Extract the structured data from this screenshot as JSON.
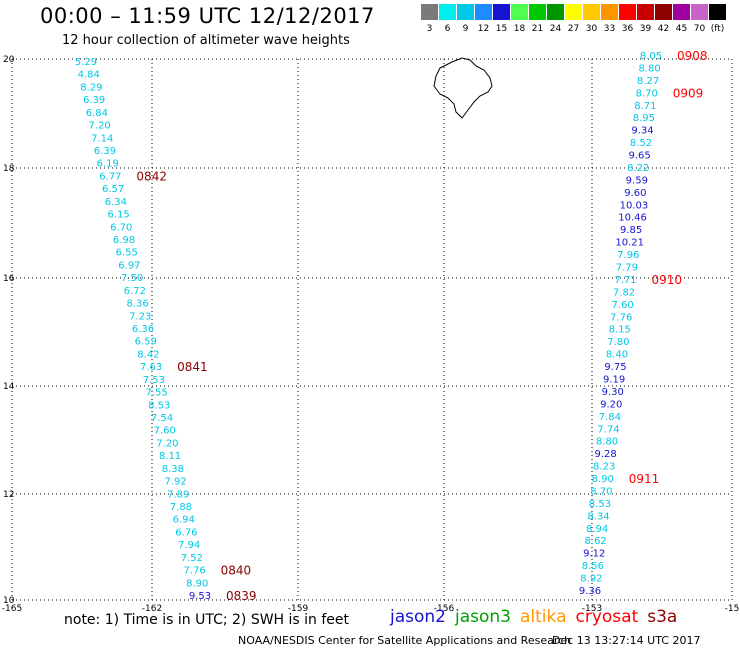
{
  "header": {
    "title": "00:00 – 11:59 UTC 12/12/2017",
    "subtitle": "12 hour collection of altimeter wave heights"
  },
  "color_scale": {
    "labels": [
      "3",
      "6",
      "9",
      "12",
      "15",
      "18",
      "21",
      "24",
      "27",
      "30",
      "33",
      "36",
      "39",
      "42",
      "45",
      "70",
      "(ft)"
    ],
    "colors": [
      "#7a7a7a",
      "#00f0f0",
      "#00c8e6",
      "#1e8cff",
      "#1414d2",
      "#50ff50",
      "#00c800",
      "#009600",
      "#ffff00",
      "#ffc800",
      "#ff9600",
      "#ff0000",
      "#c80000",
      "#8c0000",
      "#a000a0",
      "#c864c8",
      "#000000"
    ]
  },
  "axes": {
    "lon_labels": [
      "-165",
      "-162",
      "-159",
      "-156",
      "-153",
      "-15"
    ],
    "lat_labels": [
      "20",
      "18",
      "16",
      "14",
      "12",
      "10"
    ]
  },
  "tracks": [
    {
      "name": "west",
      "values": [
        {
          "v": "5.29",
          "c": "#00c8e6"
        },
        {
          "v": "4.84",
          "c": "#00c8e6"
        },
        {
          "v": "8.29",
          "c": "#00c8e6"
        },
        {
          "v": "6.39",
          "c": "#00c8e6"
        },
        {
          "v": "6.84",
          "c": "#00c8e6"
        },
        {
          "v": "7.20",
          "c": "#00c8e6"
        },
        {
          "v": "7.14",
          "c": "#00c8e6"
        },
        {
          "v": "6.39",
          "c": "#00c8e6"
        },
        {
          "v": "6.19",
          "c": "#00c8e6"
        },
        {
          "v": "6.77",
          "c": "#00c8e6"
        },
        {
          "v": "6.57",
          "c": "#00c8e6"
        },
        {
          "v": "6.34",
          "c": "#00c8e6"
        },
        {
          "v": "6.15",
          "c": "#00c8e6"
        },
        {
          "v": "6.70",
          "c": "#00c8e6"
        },
        {
          "v": "6.98",
          "c": "#00c8e6"
        },
        {
          "v": "6.55",
          "c": "#00c8e6"
        },
        {
          "v": "6.97",
          "c": "#00c8e6"
        },
        {
          "v": "7.50",
          "c": "#00c8e6"
        },
        {
          "v": "6.72",
          "c": "#00c8e6"
        },
        {
          "v": "8.36",
          "c": "#00c8e6"
        },
        {
          "v": "7.23",
          "c": "#00c8e6"
        },
        {
          "v": "6.36",
          "c": "#00c8e6"
        },
        {
          "v": "6.59",
          "c": "#00c8e6"
        },
        {
          "v": "8.42",
          "c": "#00c8e6"
        },
        {
          "v": "7.63",
          "c": "#00c8e6"
        },
        {
          "v": "7.53",
          "c": "#00c8e6"
        },
        {
          "v": "7.55",
          "c": "#00c8e6"
        },
        {
          "v": "8.53",
          "c": "#00c8e6"
        },
        {
          "v": "7.54",
          "c": "#00c8e6"
        },
        {
          "v": "7.60",
          "c": "#00c8e6"
        },
        {
          "v": "7.20",
          "c": "#00c8e6"
        },
        {
          "v": "8.11",
          "c": "#00c8e6"
        },
        {
          "v": "8.38",
          "c": "#00c8e6"
        },
        {
          "v": "7.92",
          "c": "#00c8e6"
        },
        {
          "v": "7.89",
          "c": "#00c8e6"
        },
        {
          "v": "7.88",
          "c": "#00c8e6"
        },
        {
          "v": "6.94",
          "c": "#00c8e6"
        },
        {
          "v": "6.76",
          "c": "#00c8e6"
        },
        {
          "v": "7.94",
          "c": "#00c8e6"
        },
        {
          "v": "7.52",
          "c": "#00c8e6"
        },
        {
          "v": "7.76",
          "c": "#00c8e6"
        },
        {
          "v": "8.90",
          "c": "#00c8e6"
        },
        {
          "v": "9.53",
          "c": "#1414d2"
        }
      ],
      "times": [
        {
          "t": "0842",
          "row": 9
        },
        {
          "t": "0841",
          "row": 24
        },
        {
          "t": "0840",
          "row": 40
        },
        {
          "t": "0839",
          "row": 42
        }
      ],
      "time_color": "#8c0000"
    },
    {
      "name": "east",
      "values": [
        {
          "v": "8.05",
          "c": "#00c8e6"
        },
        {
          "v": "8.80",
          "c": "#00c8e6"
        },
        {
          "v": "8.27",
          "c": "#00c8e6"
        },
        {
          "v": "8.70",
          "c": "#00c8e6"
        },
        {
          "v": "8.71",
          "c": "#00c8e6"
        },
        {
          "v": "8.95",
          "c": "#00c8e6"
        },
        {
          "v": "9.34",
          "c": "#1414d2"
        },
        {
          "v": "8.52",
          "c": "#00c8e6"
        },
        {
          "v": "9.65",
          "c": "#1414d2"
        },
        {
          "v": "8.22",
          "c": "#00c8e6"
        },
        {
          "v": "9.59",
          "c": "#1414d2"
        },
        {
          "v": "9.60",
          "c": "#1414d2"
        },
        {
          "v": "10.03",
          "c": "#1414d2"
        },
        {
          "v": "10.46",
          "c": "#1414d2"
        },
        {
          "v": "9.85",
          "c": "#1414d2"
        },
        {
          "v": "10.21",
          "c": "#1414d2"
        },
        {
          "v": "7.96",
          "c": "#00c8e6"
        },
        {
          "v": "7.79",
          "c": "#00c8e6"
        },
        {
          "v": "7.71",
          "c": "#00c8e6"
        },
        {
          "v": "7.82",
          "c": "#00c8e6"
        },
        {
          "v": "7.60",
          "c": "#00c8e6"
        },
        {
          "v": "7.76",
          "c": "#00c8e6"
        },
        {
          "v": "8.15",
          "c": "#00c8e6"
        },
        {
          "v": "7.80",
          "c": "#00c8e6"
        },
        {
          "v": "8.40",
          "c": "#00c8e6"
        },
        {
          "v": "9.75",
          "c": "#1414d2"
        },
        {
          "v": "9.19",
          "c": "#1414d2"
        },
        {
          "v": "9.30",
          "c": "#1414d2"
        },
        {
          "v": "9.20",
          "c": "#1414d2"
        },
        {
          "v": "7.84",
          "c": "#00c8e6"
        },
        {
          "v": "7.74",
          "c": "#00c8e6"
        },
        {
          "v": "8.80",
          "c": "#00c8e6"
        },
        {
          "v": "9.28",
          "c": "#1414d2"
        },
        {
          "v": "8.23",
          "c": "#00c8e6"
        },
        {
          "v": "8.90",
          "c": "#00c8e6"
        },
        {
          "v": "8.70",
          "c": "#00c8e6"
        },
        {
          "v": "8.53",
          "c": "#00c8e6"
        },
        {
          "v": "8.34",
          "c": "#00c8e6"
        },
        {
          "v": "8.94",
          "c": "#00c8e6"
        },
        {
          "v": "8.62",
          "c": "#00c8e6"
        },
        {
          "v": "9.12",
          "c": "#1414d2"
        },
        {
          "v": "8.56",
          "c": "#00c8e6"
        },
        {
          "v": "8.92",
          "c": "#00c8e6"
        },
        {
          "v": "9.36",
          "c": "#1414d2"
        }
      ],
      "times": [
        {
          "t": "0908",
          "row": 0
        },
        {
          "t": "0909",
          "row": 3
        },
        {
          "t": "0910",
          "row": 18
        },
        {
          "t": "0911",
          "row": 34
        }
      ],
      "time_color": "#ff0000"
    }
  ],
  "footer": {
    "note": "note: 1) Time is in UTC; 2) SWH is in feet",
    "legend": [
      {
        "name": "jason2",
        "color": "#1414d2"
      },
      {
        "name": "jason3",
        "color": "#00a000"
      },
      {
        "name": "altika",
        "color": "#ff9600"
      },
      {
        "name": "cryosat",
        "color": "#ff0000"
      },
      {
        "name": "s3a",
        "color": "#8c0000"
      }
    ],
    "credit": "NOAA/NESDIS Center for Satellite Applications and Research",
    "timestamp": "Dec 13 13:27:14 UTC 2017"
  }
}
